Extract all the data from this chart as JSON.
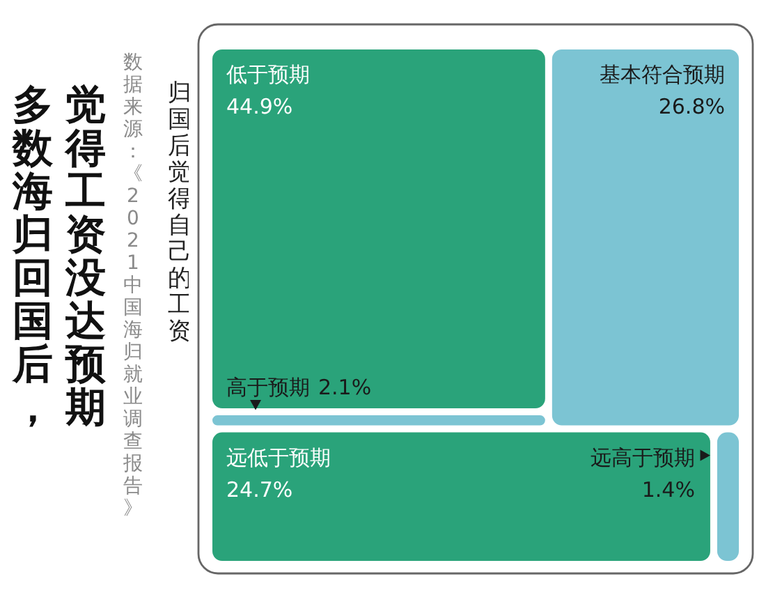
{
  "chart_data": {
    "type": "other",
    "title": "多数海归回国后，觉得工资没达预期",
    "subtitle": "归国后觉得自己的工资",
    "annotations": [
      "数据来源：《2021 中国海归就业调查报告》"
    ],
    "categories": [
      "低于预期",
      "基本符合预期",
      "高于预期",
      "远低于预期",
      "远高于预期"
    ],
    "values": [
      44.9,
      26.8,
      2.1,
      24.7,
      1.4
    ],
    "value_labels": [
      "44.9%",
      "26.8%",
      "2.1%",
      "24.7%",
      "1.4%"
    ],
    "colors": [
      "#2aa37a",
      "#7cc4d3",
      "#7cc4d3",
      "#2aa37a",
      "#7cc4d3"
    ]
  }
}
